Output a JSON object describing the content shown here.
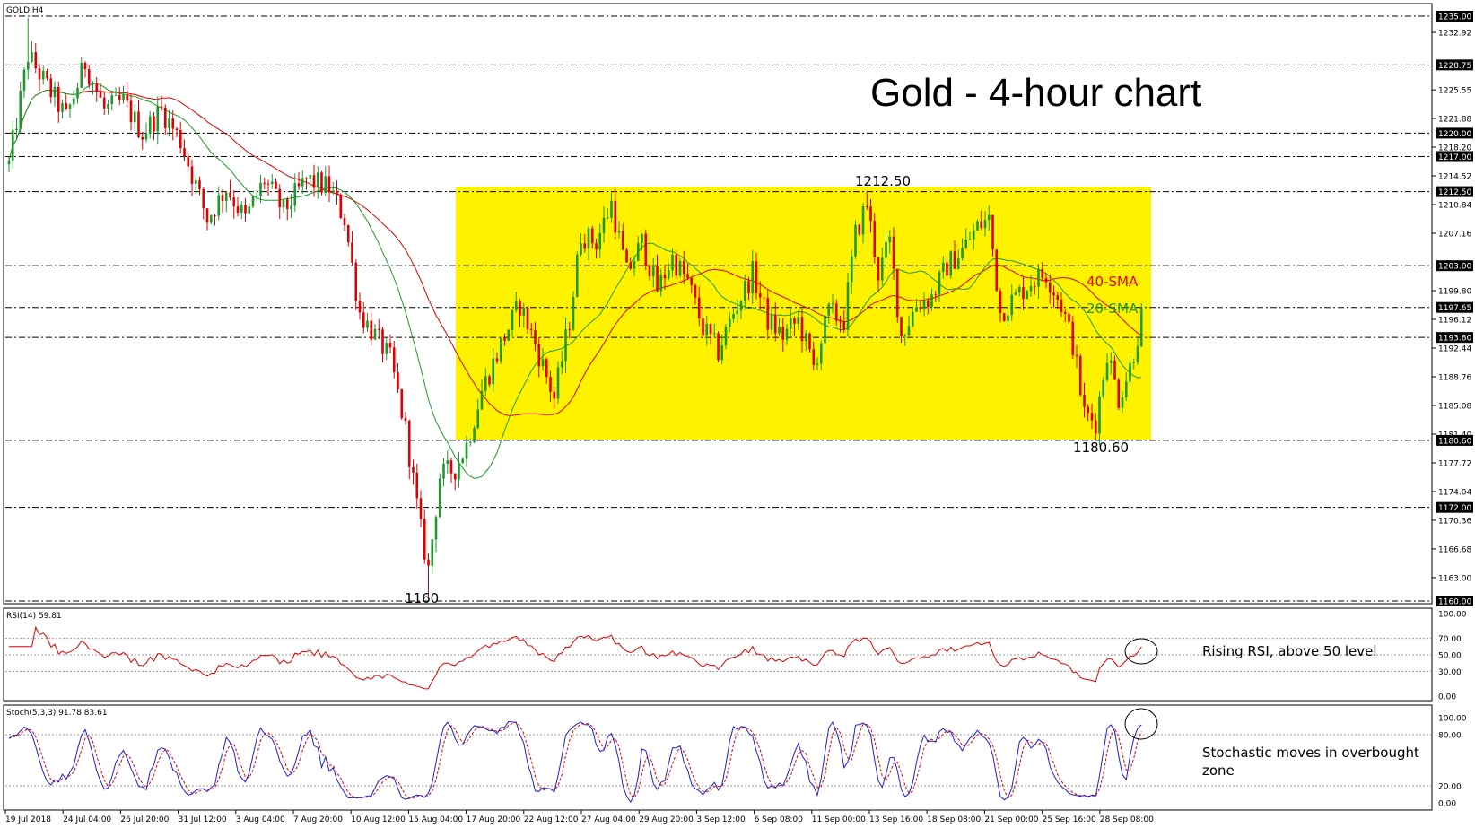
{
  "colors": {
    "background": "#ffffff",
    "range_box": "#fff200",
    "bull_candle": "#1e9a2c",
    "bear_candle": "#e00000",
    "sma20": "#1e9a2c",
    "sma40": "#e00000",
    "rsi_line": "#e00000",
    "stoch_main": "#1f1fd0",
    "stoch_signal": "#e00000",
    "level_line": "#000000"
  },
  "chart_data": [
    {
      "type": "candlestick",
      "symbol_label": "GOLD,H4",
      "title": "Gold - 4-hour chart",
      "ylim": [
        1160.0,
        1235.0
      ],
      "y_tick_labels": [
        "1232.92",
        "1225.55",
        "1221.88",
        "1218.20",
        "1214.52",
        "1210.84",
        "1207.16",
        "1199.80",
        "1196.12",
        "1192.44",
        "1188.76",
        "1185.08",
        "1181.40",
        "1177.72",
        "1174.04",
        "1170.36",
        "1166.68",
        "1163.00"
      ],
      "highlighted_levels": [
        "1235.00",
        "1228.75",
        "1220.00",
        "1217.00",
        "1212.50",
        "1203.00",
        "1197.65",
        "1193.80",
        "1180.60",
        "1172.00",
        "1160.00"
      ],
      "x_tick_labels": [
        "19 Jul 2018",
        "24 Jul 04:00",
        "26 Jul 20:00",
        "31 Jul 12:00",
        "3 Aug 04:00",
        "7 Aug 20:00",
        "10 Aug 12:00",
        "15 Aug 04:00",
        "17 Aug 20:00",
        "22 Aug 12:00",
        "27 Aug 04:00",
        "29 Aug 20:00",
        "3 Sep 12:00",
        "6 Sep 08:00",
        "11 Sep 00:00",
        "13 Sep 16:00",
        "18 Sep 08:00",
        "21 Sep 00:00",
        "25 Sep 16:00",
        "28 Sep 08:00"
      ],
      "price_path": [
        {
          "i": 0,
          "p": 1216
        },
        {
          "i": 5,
          "p": 1230
        },
        {
          "i": 10,
          "p": 1226
        },
        {
          "i": 15,
          "p": 1222
        },
        {
          "i": 20,
          "p": 1229
        },
        {
          "i": 25,
          "p": 1223
        },
        {
          "i": 30,
          "p": 1224
        },
        {
          "i": 35,
          "p": 1220
        },
        {
          "i": 40,
          "p": 1223
        },
        {
          "i": 45,
          "p": 1219
        },
        {
          "i": 52,
          "p": 1209
        },
        {
          "i": 57,
          "p": 1213
        },
        {
          "i": 62,
          "p": 1209
        },
        {
          "i": 67,
          "p": 1214
        },
        {
          "i": 72,
          "p": 1210
        },
        {
          "i": 78,
          "p": 1214
        },
        {
          "i": 84,
          "p": 1213
        },
        {
          "i": 88,
          "p": 1209
        },
        {
          "i": 92,
          "p": 1197
        },
        {
          "i": 96,
          "p": 1194
        },
        {
          "i": 100,
          "p": 1191
        },
        {
          "i": 104,
          "p": 1182
        },
        {
          "i": 108,
          "p": 1169
        },
        {
          "i": 110,
          "p": 1164
        },
        {
          "i": 113,
          "p": 1176
        },
        {
          "i": 117,
          "p": 1177
        },
        {
          "i": 120,
          "p": 1180
        },
        {
          "i": 124,
          "p": 1187
        },
        {
          "i": 130,
          "p": 1194
        },
        {
          "i": 134,
          "p": 1198
        },
        {
          "i": 138,
          "p": 1193
        },
        {
          "i": 143,
          "p": 1186
        },
        {
          "i": 147,
          "p": 1196
        },
        {
          "i": 150,
          "p": 1207
        },
        {
          "i": 154,
          "p": 1206
        },
        {
          "i": 158,
          "p": 1211
        },
        {
          "i": 162,
          "p": 1202
        },
        {
          "i": 166,
          "p": 1206
        },
        {
          "i": 170,
          "p": 1200
        },
        {
          "i": 174,
          "p": 1204
        },
        {
          "i": 178,
          "p": 1201
        },
        {
          "i": 182,
          "p": 1195
        },
        {
          "i": 186,
          "p": 1192
        },
        {
          "i": 190,
          "p": 1197
        },
        {
          "i": 195,
          "p": 1202
        },
        {
          "i": 199,
          "p": 1196
        },
        {
          "i": 203,
          "p": 1194
        },
        {
          "i": 207,
          "p": 1196
        },
        {
          "i": 211,
          "p": 1190
        },
        {
          "i": 215,
          "p": 1197
        },
        {
          "i": 219,
          "p": 1196
        },
        {
          "i": 222,
          "p": 1207
        },
        {
          "i": 225,
          "p": 1211
        },
        {
          "i": 228,
          "p": 1202
        },
        {
          "i": 231,
          "p": 1206
        },
        {
          "i": 234,
          "p": 1194
        },
        {
          "i": 238,
          "p": 1198
        },
        {
          "i": 242,
          "p": 1199
        },
        {
          "i": 246,
          "p": 1203
        },
        {
          "i": 250,
          "p": 1205
        },
        {
          "i": 254,
          "p": 1208
        },
        {
          "i": 257,
          "p": 1209
        },
        {
          "i": 260,
          "p": 1197
        },
        {
          "i": 264,
          "p": 1199
        },
        {
          "i": 268,
          "p": 1201
        },
        {
          "i": 272,
          "p": 1202
        },
        {
          "i": 276,
          "p": 1198
        },
        {
          "i": 279,
          "p": 1193
        },
        {
          "i": 282,
          "p": 1184
        },
        {
          "i": 285,
          "p": 1183
        },
        {
          "i": 288,
          "p": 1192
        },
        {
          "i": 291,
          "p": 1186
        },
        {
          "i": 294,
          "p": 1190
        },
        {
          "i": 297,
          "p": 1196
        }
      ]
    },
    {
      "type": "line",
      "title": "RSI(14) 59.81",
      "ylim": [
        0,
        100
      ],
      "y_tick_labels": [
        "100.00",
        "70.00",
        "50.00",
        "30.00",
        "0.00"
      ],
      "series": [
        {
          "name": "RSI(14)",
          "last": 59.81
        }
      ]
    },
    {
      "type": "line",
      "title": "Stoch(5,3,3) 91.78 83.61",
      "ylim": [
        0,
        100
      ],
      "y_tick_labels": [
        "100.00",
        "80.00",
        "20.00",
        "0.00"
      ],
      "series": [
        {
          "name": "Stoch(5,3,3)",
          "last": 91.78
        },
        {
          "name": "Signal",
          "last": 83.61
        }
      ]
    }
  ],
  "annotations": {
    "range_top_label": "1212.50",
    "range_bottom_label": "1180.60",
    "low_label": "1160",
    "sma40_label": "40-SMA",
    "sma20_label": "20-SMA",
    "rsi_note": "Rising RSI, above 50 level",
    "stoch_note_line1": "Stochastic moves in overbought",
    "stoch_note_line2": "zone"
  }
}
